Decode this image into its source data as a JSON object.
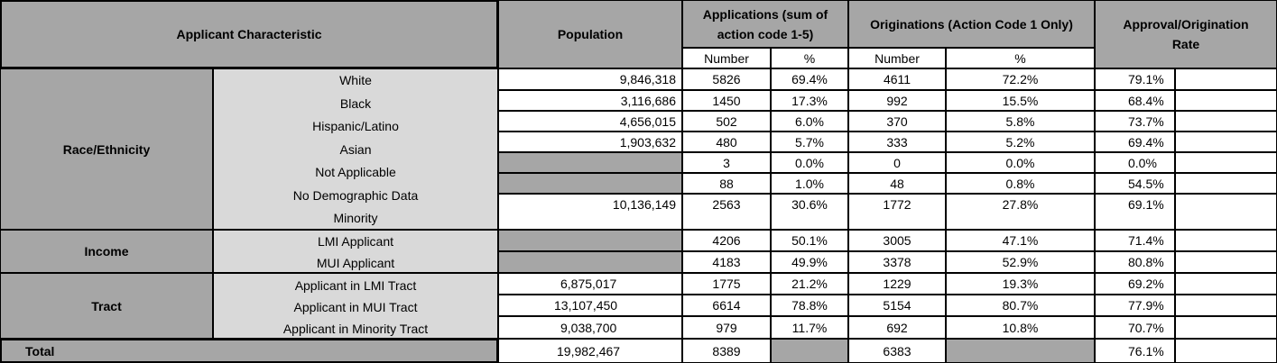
{
  "headers": {
    "characteristic": "Applicant Characteristic",
    "population": "Population",
    "applications_line1": "Applications  (sum of",
    "applications_line2": "action code 1-5)",
    "originations": "Originations (Action  Code 1 Only)",
    "rate_line1": "Approval/Origination",
    "rate_line2": "Rate",
    "number": "Number",
    "percent": "%",
    "number2": "Number",
    "percent2": "%"
  },
  "groups": {
    "race": "Race/Ethnicity",
    "income": "Income",
    "tract": "Tract",
    "total": "Total"
  },
  "rows": [
    {
      "label": "White",
      "population": "9,846,318",
      "app_num": "5826",
      "app_pct": "69.4%",
      "orig_num": "4611",
      "orig_pct": "72.2%",
      "rate": "79.1%"
    },
    {
      "label": "Black",
      "population": "3,116,686",
      "app_num": "1450",
      "app_pct": "17.3%",
      "orig_num": "992",
      "orig_pct": "15.5%",
      "rate": "68.4%"
    },
    {
      "label": "Hispanic/Latino",
      "population": "4,656,015",
      "app_num": "502",
      "app_pct": "6.0%",
      "orig_num": "370",
      "orig_pct": "5.8%",
      "rate": "73.7%"
    },
    {
      "label": "Asian",
      "population": "1,903,632",
      "app_num": "480",
      "app_pct": "5.7%",
      "orig_num": "333",
      "orig_pct": "5.2%",
      "rate": "69.4%"
    },
    {
      "label": "Not Applicable",
      "population": "",
      "app_num": "3",
      "app_pct": "0.0%",
      "orig_num": "0",
      "orig_pct": "0.0%",
      "rate": "0.0%"
    },
    {
      "label": "No Demographic Data",
      "population": "",
      "app_num": "88",
      "app_pct": "1.0%",
      "orig_num": "48",
      "orig_pct": "0.8%",
      "rate": "54.5%"
    },
    {
      "label": "Minority",
      "population": "10,136,149",
      "app_num": "2563",
      "app_pct": "30.6%",
      "orig_num": "1772",
      "orig_pct": "27.8%",
      "rate": "69.1%"
    },
    {
      "label": "LMI Applicant",
      "population": "",
      "app_num": "4206",
      "app_pct": "50.1%",
      "orig_num": "3005",
      "orig_pct": "47.1%",
      "rate": "71.4%"
    },
    {
      "label": "MUI Applicant",
      "population": "",
      "app_num": "4183",
      "app_pct": "49.9%",
      "orig_num": "3378",
      "orig_pct": "52.9%",
      "rate": "80.8%"
    },
    {
      "label": "Applicant in LMI Tract",
      "population": "6,875,017",
      "app_num": "1775",
      "app_pct": "21.2%",
      "orig_num": "1229",
      "orig_pct": "19.3%",
      "rate": "69.2%"
    },
    {
      "label": "Applicant in MUI Tract",
      "population": "13,107,450",
      "app_num": "6614",
      "app_pct": "78.8%",
      "orig_num": "5154",
      "orig_pct": "80.7%",
      "rate": "77.9%"
    },
    {
      "label": "Applicant in Minority Tract",
      "population": "9,038,700",
      "app_num": "979",
      "app_pct": "11.7%",
      "orig_num": "692",
      "orig_pct": "10.8%",
      "rate": "70.7%"
    }
  ],
  "total": {
    "population": "19,982,467",
    "app_num": "8389",
    "orig_num": "6383",
    "rate": "76.1%"
  }
}
